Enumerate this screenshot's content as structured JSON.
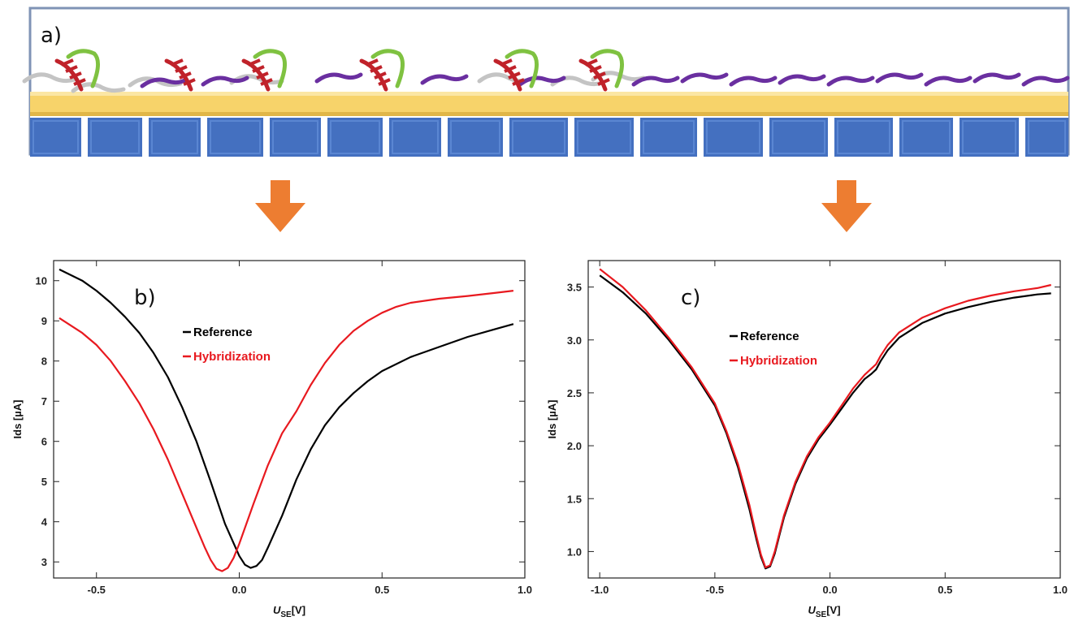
{
  "scheme": {
    "panel_label": "a)",
    "colors": {
      "frame": "#7f93b5",
      "gold_layer": "#f7d36a",
      "substrate": "#4470c0",
      "probe_dna": "#c0222a",
      "target_dna": "#7fc241",
      "unbound_strand": "#c4c4c4",
      "blocker_strand": "#6a2fa0",
      "arrow": "#ed7d31"
    }
  },
  "chart_data": [
    {
      "id": "b",
      "type": "line",
      "panel_label": "b)",
      "xlabel_main": "U",
      "xlabel_sub": "SE",
      "xlabel_unit": "[V]",
      "ylabel": "Ids [µA]",
      "xlim": [
        -0.65,
        1.0
      ],
      "ylim": [
        2.6,
        10.5
      ],
      "xticks": [
        -0.5,
        0.0,
        0.5,
        1.0
      ],
      "xtick_labels": [
        "-0.5",
        "0.0",
        "0.5",
        "1.0"
      ],
      "yticks": [
        3,
        4,
        5,
        6,
        7,
        8,
        9,
        10
      ],
      "ytick_labels": [
        "3",
        "4",
        "5",
        "6",
        "7",
        "8",
        "9",
        "10"
      ],
      "series": [
        {
          "name": "Reference",
          "color": "#000000",
          "x": [
            -0.63,
            -0.55,
            -0.5,
            -0.45,
            -0.4,
            -0.35,
            -0.3,
            -0.25,
            -0.2,
            -0.15,
            -0.1,
            -0.05,
            0.0,
            0.02,
            0.04,
            0.06,
            0.08,
            0.1,
            0.15,
            0.2,
            0.25,
            0.3,
            0.35,
            0.4,
            0.45,
            0.5,
            0.6,
            0.7,
            0.8,
            0.9,
            0.96
          ],
          "y": [
            10.28,
            10.0,
            9.75,
            9.45,
            9.1,
            8.7,
            8.2,
            7.6,
            6.85,
            6.0,
            5.0,
            3.95,
            3.15,
            2.93,
            2.85,
            2.9,
            3.05,
            3.35,
            4.15,
            5.05,
            5.8,
            6.4,
            6.85,
            7.2,
            7.5,
            7.75,
            8.1,
            8.35,
            8.6,
            8.8,
            8.92
          ]
        },
        {
          "name": "Hybridization",
          "color": "#e8191f",
          "x": [
            -0.63,
            -0.55,
            -0.5,
            -0.45,
            -0.4,
            -0.35,
            -0.3,
            -0.25,
            -0.2,
            -0.15,
            -0.12,
            -0.1,
            -0.08,
            -0.06,
            -0.04,
            -0.02,
            0.0,
            0.05,
            0.1,
            0.15,
            0.2,
            0.25,
            0.3,
            0.35,
            0.4,
            0.45,
            0.5,
            0.55,
            0.6,
            0.7,
            0.8,
            0.9,
            0.96
          ],
          "y": [
            9.07,
            8.7,
            8.4,
            8.0,
            7.5,
            6.95,
            6.3,
            5.55,
            4.7,
            3.85,
            3.35,
            3.05,
            2.83,
            2.77,
            2.85,
            3.1,
            3.45,
            4.45,
            5.4,
            6.2,
            6.75,
            7.4,
            7.95,
            8.4,
            8.75,
            9.0,
            9.2,
            9.35,
            9.45,
            9.55,
            9.62,
            9.7,
            9.75
          ]
        }
      ]
    },
    {
      "id": "c",
      "type": "line",
      "panel_label": "c)",
      "xlabel_main": "U",
      "xlabel_sub": "SE",
      "xlabel_unit": "[V]",
      "ylabel": "Ids [µA]",
      "xlim": [
        -1.05,
        1.0
      ],
      "ylim": [
        0.75,
        3.75
      ],
      "xticks": [
        -1.0,
        -0.5,
        0.0,
        0.5,
        1.0
      ],
      "xtick_labels": [
        "-1.0",
        "-0.5",
        "0.0",
        "0.5",
        "1.0"
      ],
      "yticks": [
        1.0,
        1.5,
        2.0,
        2.5,
        3.0,
        3.5
      ],
      "ytick_labels": [
        "1.0",
        "1.5",
        "2.0",
        "2.5",
        "3.0",
        "3.5"
      ],
      "series": [
        {
          "name": "Reference",
          "color": "#000000",
          "x": [
            -1.0,
            -0.9,
            -0.8,
            -0.7,
            -0.6,
            -0.5,
            -0.45,
            -0.4,
            -0.35,
            -0.32,
            -0.3,
            -0.28,
            -0.26,
            -0.24,
            -0.22,
            -0.2,
            -0.15,
            -0.1,
            -0.05,
            0.0,
            0.05,
            0.1,
            0.15,
            0.18,
            0.2,
            0.22,
            0.25,
            0.3,
            0.4,
            0.5,
            0.6,
            0.7,
            0.8,
            0.9,
            0.96
          ],
          "y": [
            3.61,
            3.45,
            3.25,
            3.0,
            2.72,
            2.38,
            2.12,
            1.8,
            1.4,
            1.12,
            0.95,
            0.84,
            0.86,
            0.98,
            1.15,
            1.32,
            1.64,
            1.88,
            2.06,
            2.2,
            2.35,
            2.5,
            2.63,
            2.68,
            2.72,
            2.8,
            2.9,
            3.02,
            3.16,
            3.25,
            3.31,
            3.36,
            3.4,
            3.43,
            3.44
          ]
        },
        {
          "name": "Hybridization",
          "color": "#e8191f",
          "x": [
            -1.0,
            -0.9,
            -0.8,
            -0.7,
            -0.6,
            -0.5,
            -0.45,
            -0.4,
            -0.35,
            -0.32,
            -0.3,
            -0.28,
            -0.26,
            -0.24,
            -0.22,
            -0.2,
            -0.15,
            -0.1,
            -0.05,
            0.0,
            0.05,
            0.1,
            0.15,
            0.18,
            0.2,
            0.22,
            0.25,
            0.3,
            0.4,
            0.5,
            0.6,
            0.7,
            0.8,
            0.9,
            0.96
          ],
          "y": [
            3.67,
            3.5,
            3.28,
            3.02,
            2.74,
            2.4,
            2.14,
            1.83,
            1.44,
            1.15,
            0.97,
            0.85,
            0.87,
            1.0,
            1.17,
            1.34,
            1.66,
            1.9,
            2.08,
            2.22,
            2.38,
            2.54,
            2.67,
            2.73,
            2.77,
            2.85,
            2.95,
            3.07,
            3.21,
            3.3,
            3.37,
            3.42,
            3.46,
            3.49,
            3.52
          ]
        }
      ]
    }
  ]
}
